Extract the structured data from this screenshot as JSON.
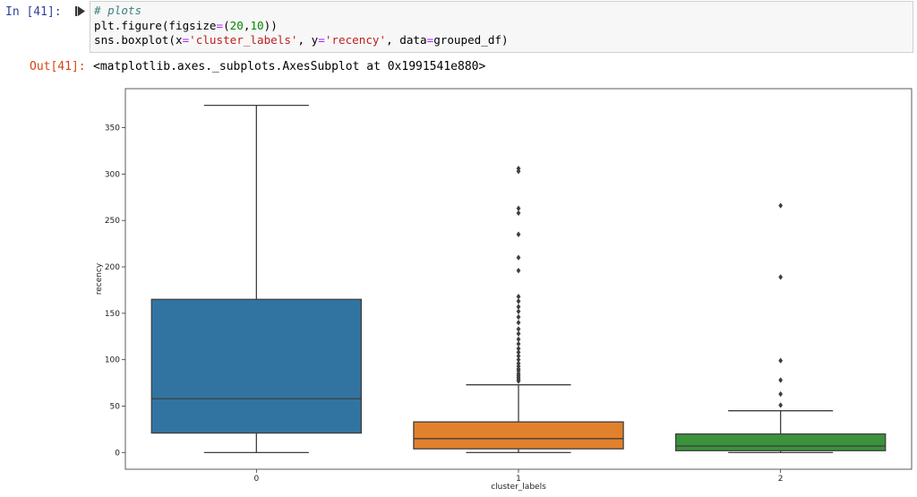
{
  "input_cell": {
    "prompt": "In [41]:",
    "code_lines": [
      [
        {
          "t": "# plots",
          "c": "tk-comment"
        }
      ],
      [
        {
          "t": "plt.figure(figsize",
          "c": ""
        },
        {
          "t": "=",
          "c": "tk-op"
        },
        {
          "t": "(",
          "c": ""
        },
        {
          "t": "20",
          "c": "tk-num"
        },
        {
          "t": ",",
          "c": ""
        },
        {
          "t": "10",
          "c": "tk-num"
        },
        {
          "t": "))",
          "c": ""
        }
      ],
      [
        {
          "t": "sns.boxplot(x",
          "c": ""
        },
        {
          "t": "=",
          "c": "tk-op"
        },
        {
          "t": "'cluster_labels'",
          "c": "tk-str"
        },
        {
          "t": ", y",
          "c": ""
        },
        {
          "t": "=",
          "c": "tk-op"
        },
        {
          "t": "'recency'",
          "c": "tk-str"
        },
        {
          "t": ", data",
          "c": ""
        },
        {
          "t": "=",
          "c": "tk-op"
        },
        {
          "t": "grouped_df)",
          "c": ""
        }
      ]
    ]
  },
  "output_cell": {
    "prompt": "Out[41]:",
    "text": "<matplotlib.axes._subplots.AxesSubplot at 0x1991541e880>"
  },
  "colors": {
    "cluster_0": "#3274a1",
    "cluster_1": "#e1812c",
    "cluster_2": "#3a923a",
    "line": "#3f3f3f",
    "accent_prompt_in": "#303f9f",
    "accent_prompt_out": "#d84315"
  },
  "chart_data": {
    "type": "box",
    "xlabel": "cluster_labels",
    "ylabel": "recency",
    "ylim": [
      -18,
      392
    ],
    "yticks": [
      0,
      50,
      100,
      150,
      200,
      250,
      300,
      350
    ],
    "categories": [
      "0",
      "1",
      "2"
    ],
    "boxes": [
      {
        "name": "0",
        "whisker_low": 0,
        "q1": 21,
        "median": 58,
        "q3": 165,
        "whisker_high": 374,
        "outliers": []
      },
      {
        "name": "1",
        "whisker_low": 0,
        "q1": 4,
        "median": 15,
        "q3": 33,
        "whisker_high": 73,
        "outliers": [
          77,
          79,
          81,
          83,
          85,
          88,
          90,
          93,
          96,
          100,
          104,
          108,
          112,
          117,
          122,
          128,
          133,
          140,
          146,
          152,
          157,
          163,
          168,
          196,
          210,
          235,
          258,
          263,
          303,
          306
        ]
      },
      {
        "name": "2",
        "whisker_low": 0,
        "q1": 2,
        "median": 7,
        "q3": 20,
        "whisker_high": 45,
        "outliers": [
          51,
          63,
          78,
          99,
          189,
          266
        ]
      }
    ],
    "grid": false
  }
}
